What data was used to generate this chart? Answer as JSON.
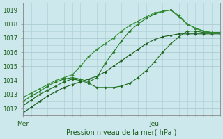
{
  "title": "",
  "xlabel": "Pression niveau de la mer( hPa )",
  "bg_color": "#cce8ec",
  "grid_color": "#aaccd4",
  "xlim": [
    0,
    36
  ],
  "ylim": [
    1011.5,
    1019.5
  ],
  "yticks": [
    1012,
    1013,
    1014,
    1015,
    1016,
    1017,
    1018,
    1019
  ],
  "xtick_positions": [
    0,
    24
  ],
  "xtick_labels": [
    "Mer",
    "Jeu"
  ],
  "vline_x": 24,
  "series": [
    {
      "x": [
        0,
        1.5,
        3,
        4.5,
        6,
        7.5,
        9,
        10.5,
        12,
        13.5,
        15,
        16.5,
        18,
        19.5,
        21,
        22.5,
        24,
        25.5,
        27,
        28.5,
        30,
        31.5,
        33,
        34.5,
        36
      ],
      "y": [
        1011.7,
        1012.1,
        1012.5,
        1012.9,
        1013.2,
        1013.5,
        1013.7,
        1013.9,
        1014.1,
        1014.3,
        1014.6,
        1015.0,
        1015.4,
        1015.8,
        1016.2,
        1016.6,
        1016.9,
        1017.1,
        1017.2,
        1017.3,
        1017.3,
        1017.3,
        1017.3,
        1017.3,
        1017.3
      ],
      "marker": "D",
      "markersize": 1.8,
      "linewidth": 0.8,
      "color": "#1a5c1a"
    },
    {
      "x": [
        0,
        1.5,
        3,
        4.5,
        6,
        7.5,
        9,
        10.5,
        12,
        13.5,
        15,
        16.5,
        18,
        19.5,
        21,
        22.5,
        24,
        25.5,
        27,
        28.5,
        30,
        31.5,
        33,
        34.5,
        36
      ],
      "y": [
        1012.2,
        1012.6,
        1013.0,
        1013.3,
        1013.6,
        1013.9,
        1014.1,
        1014.0,
        1013.8,
        1013.5,
        1013.5,
        1013.5,
        1013.6,
        1013.8,
        1014.2,
        1014.7,
        1015.3,
        1016.0,
        1016.6,
        1017.1,
        1017.5,
        1017.5,
        1017.4,
        1017.4,
        1017.4
      ],
      "marker": "D",
      "markersize": 1.8,
      "linewidth": 0.8,
      "color": "#1a6a1a"
    },
    {
      "x": [
        0,
        1.5,
        3,
        4.5,
        6,
        7.5,
        9,
        10.5,
        12,
        13.5,
        15,
        16.5,
        18,
        19.5,
        21,
        22.5,
        24,
        25.5,
        27,
        28.5,
        30,
        31.5,
        33,
        34.5,
        36
      ],
      "y": [
        1012.5,
        1012.9,
        1013.2,
        1013.6,
        1013.9,
        1014.1,
        1014.2,
        1014.1,
        1013.9,
        1014.2,
        1015.2,
        1016.0,
        1016.8,
        1017.5,
        1018.0,
        1018.4,
        1018.7,
        1018.9,
        1019.0,
        1018.6,
        1018.0,
        1017.7,
        1017.5,
        1017.4,
        1017.4
      ],
      "marker": "D",
      "markersize": 1.8,
      "linewidth": 0.8,
      "color": "#237a23"
    },
    {
      "x": [
        0,
        1.5,
        3,
        4.5,
        6,
        7.5,
        9,
        10.5,
        12,
        13.5,
        15,
        16.5,
        18,
        19.5,
        21,
        22.5,
        24,
        25.5,
        27,
        28.5,
        30,
        31.5,
        33,
        34.5,
        36
      ],
      "y": [
        1012.8,
        1013.1,
        1013.4,
        1013.7,
        1014.0,
        1014.2,
        1014.4,
        1015.0,
        1015.7,
        1016.2,
        1016.6,
        1017.0,
        1017.5,
        1017.9,
        1018.2,
        1018.5,
        1018.8,
        1018.9,
        1019.0,
        1018.5,
        1018.0,
        1017.7,
        1017.5,
        1017.4,
        1017.4
      ],
      "marker": "D",
      "markersize": 1.8,
      "linewidth": 0.8,
      "color": "#2e8b2e"
    }
  ]
}
